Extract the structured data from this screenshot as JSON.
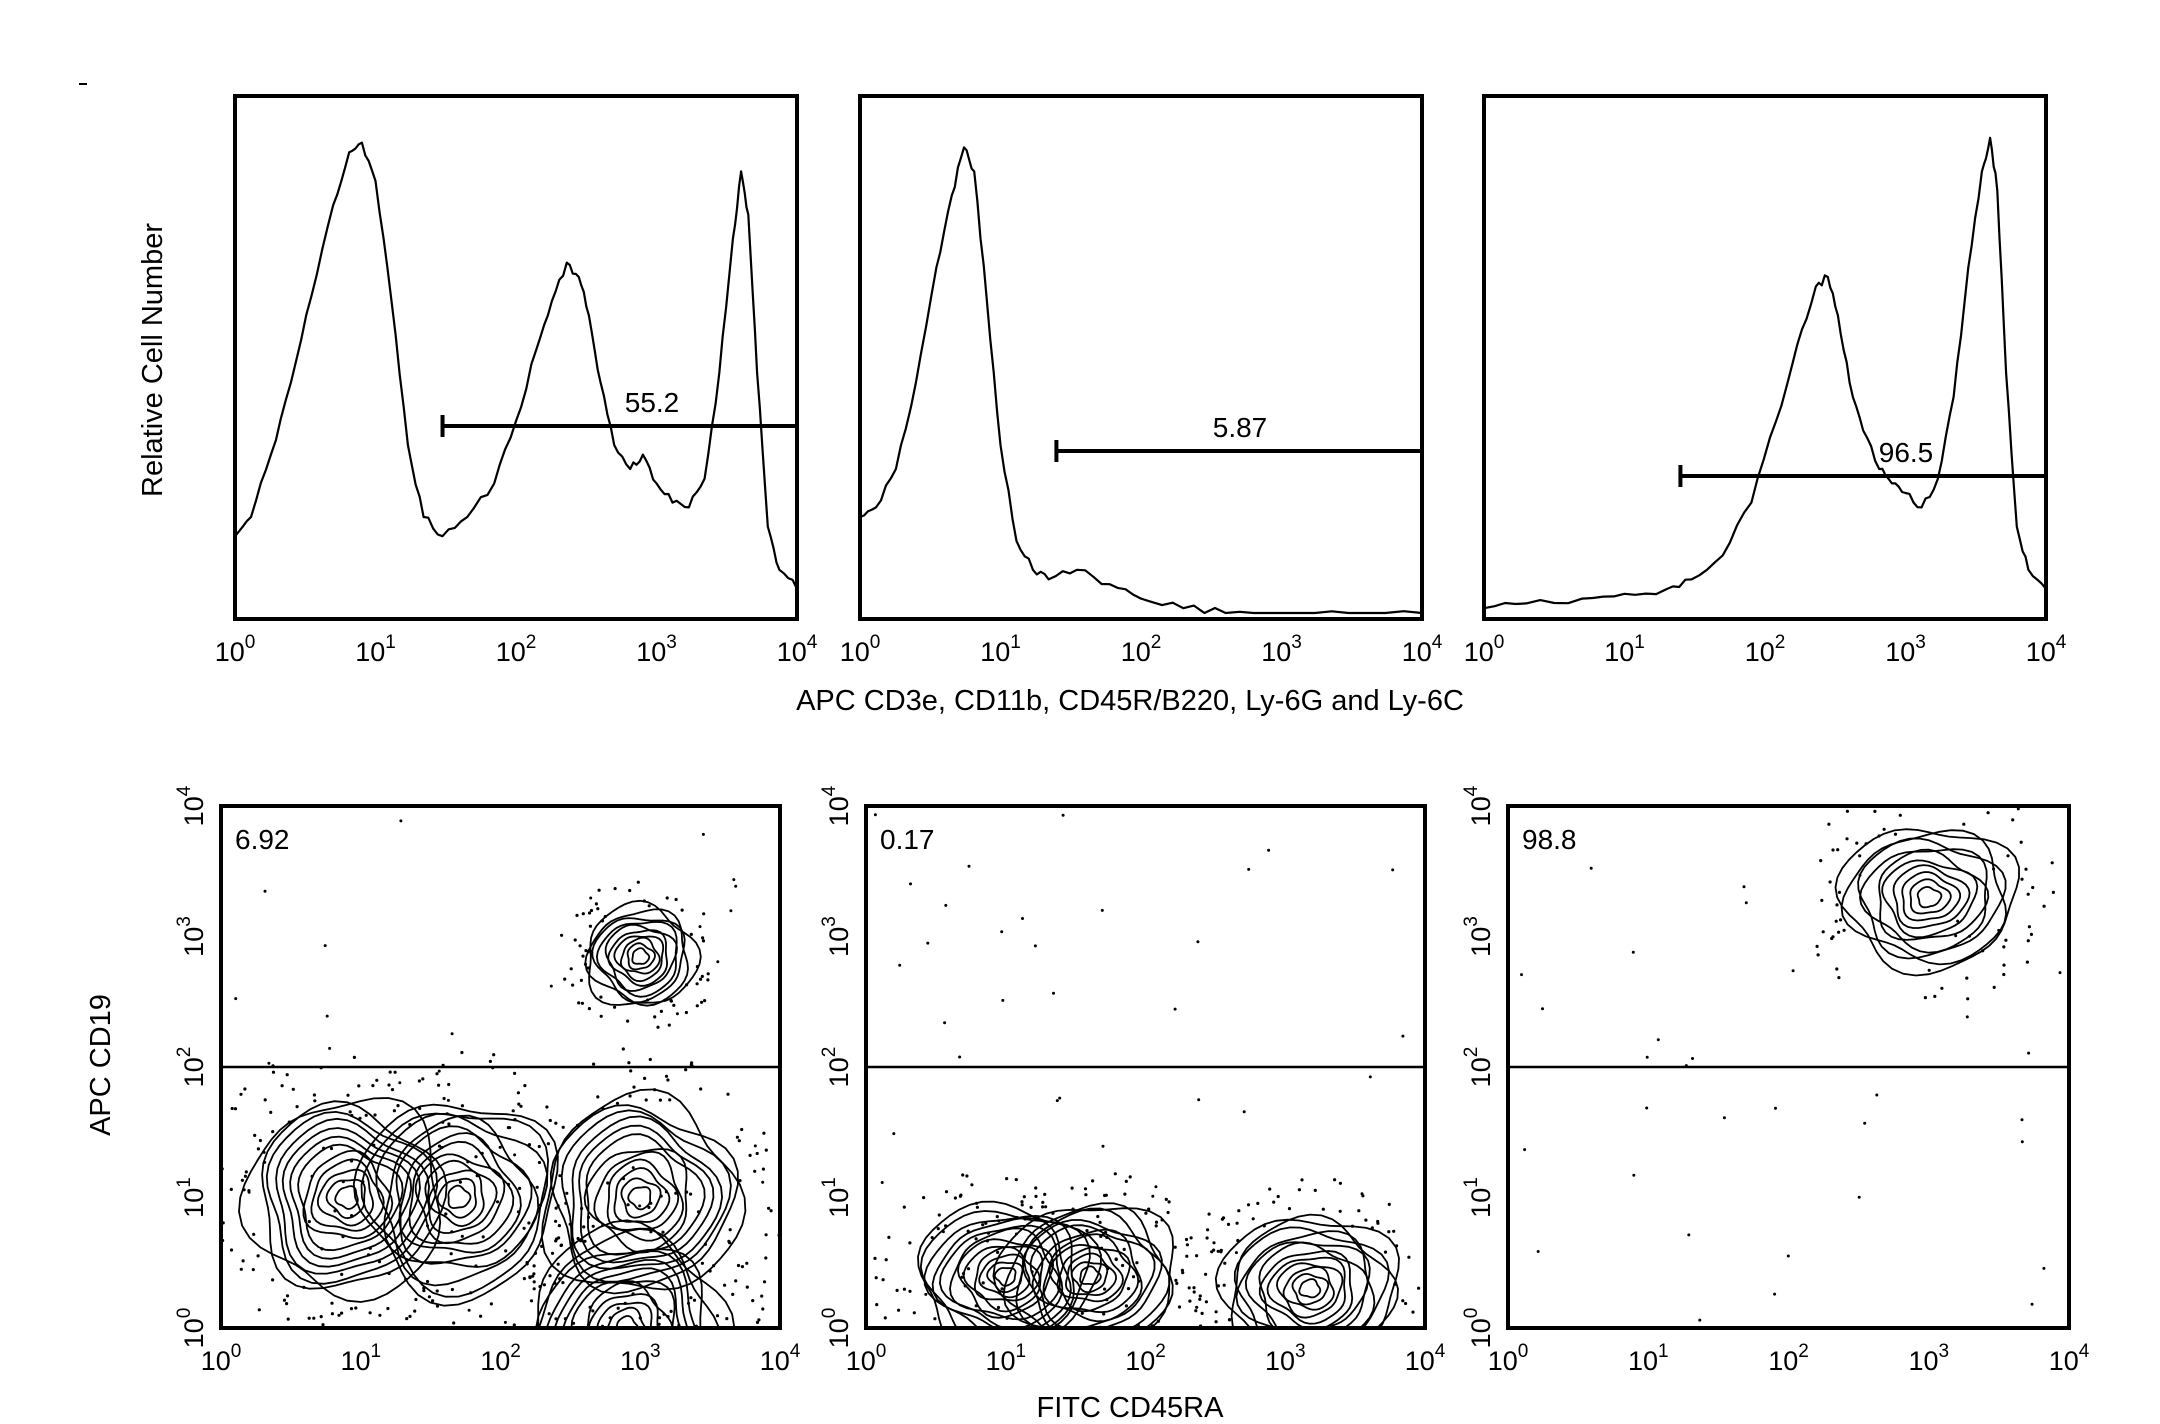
{
  "figure": {
    "histograms": {
      "ylabel": "Relative Cell Number",
      "xlabel": "APC CD3e, CD11b, CD45R/B220, Ly-6G and Ly-6C",
      "tick_labels": [
        "10^0",
        "10^1",
        "10^2",
        "10^3",
        "10^4"
      ]
    },
    "dotplots": {
      "ylabel": "APC CD19",
      "xlabel": "FITC CD45RA",
      "tick_labels": [
        "10^0",
        "10^1",
        "10^2",
        "10^3",
        "10^4"
      ]
    }
  },
  "chart_data": [
    {
      "type": "line",
      "panel": "histogram-1",
      "xscale": "log",
      "xlim": [
        1,
        10000
      ],
      "x": [
        1,
        1.3,
        1.8,
        2.5,
        3.5,
        5,
        6.5,
        8,
        10,
        13,
        17,
        22,
        30,
        45,
        70,
        100,
        140,
        180,
        230,
        280,
        330,
        400,
        500,
        650,
        800,
        1000,
        1300,
        1700,
        2200,
        2800,
        3500,
        4000,
        4500,
        5200,
        6200,
        7500,
        10000
      ],
      "values": [
        0.16,
        0.2,
        0.33,
        0.48,
        0.66,
        0.85,
        0.96,
        0.98,
        0.9,
        0.65,
        0.35,
        0.2,
        0.16,
        0.2,
        0.27,
        0.4,
        0.55,
        0.65,
        0.73,
        0.7,
        0.62,
        0.48,
        0.35,
        0.3,
        0.33,
        0.27,
        0.23,
        0.22,
        0.28,
        0.5,
        0.78,
        0.92,
        0.83,
        0.5,
        0.18,
        0.09,
        0.05
      ],
      "gate": {
        "x_range": [
          30,
          10000
        ],
        "label": "55.2"
      }
    },
    {
      "type": "line",
      "panel": "histogram-2",
      "xscale": "log",
      "xlim": [
        1,
        10000
      ],
      "x": [
        1,
        1.3,
        1.8,
        2.5,
        3.5,
        4.5,
        5.5,
        6.5,
        8,
        10,
        13,
        17,
        22,
        35,
        60,
        100,
        200,
        400,
        1000,
        3000,
        10000
      ],
      "values": [
        0.2,
        0.22,
        0.3,
        0.48,
        0.72,
        0.87,
        0.97,
        0.92,
        0.65,
        0.35,
        0.15,
        0.09,
        0.07,
        0.09,
        0.06,
        0.03,
        0.01,
        0.0,
        0.0,
        0.0,
        0.0
      ],
      "gate": {
        "x_range": [
          25,
          10000
        ],
        "label": "5.87"
      }
    },
    {
      "type": "line",
      "panel": "histogram-3",
      "xscale": "log",
      "xlim": [
        1,
        10000
      ],
      "x": [
        1,
        2,
        5,
        10,
        20,
        30,
        50,
        80,
        120,
        170,
        230,
        280,
        330,
        400,
        500,
        650,
        800,
        1000,
        1300,
        1700,
        2200,
        2800,
        3500,
        4000,
        4500,
        5200,
        6200,
        7500,
        10000
      ],
      "values": [
        0.01,
        0.02,
        0.03,
        0.04,
        0.05,
        0.07,
        0.12,
        0.23,
        0.4,
        0.56,
        0.68,
        0.7,
        0.62,
        0.48,
        0.38,
        0.3,
        0.27,
        0.25,
        0.22,
        0.28,
        0.45,
        0.72,
        0.92,
        0.99,
        0.88,
        0.5,
        0.18,
        0.09,
        0.05
      ],
      "gate": {
        "x_range": [
          25,
          10000
        ],
        "label": "96.5"
      }
    },
    {
      "type": "scatter",
      "panel": "dotplot-1",
      "xscale": "log",
      "yscale": "log",
      "xlim": [
        1,
        10000
      ],
      "ylim": [
        1,
        10000
      ],
      "gate": {
        "y_range": [
          100,
          10000
        ],
        "label": "6.92"
      },
      "populations": [
        {
          "x": 1000,
          "y": 700
        },
        {
          "x": 8,
          "y": 10
        },
        {
          "x": 50,
          "y": 10
        },
        {
          "x": 1000,
          "y": 10
        },
        {
          "x": 800,
          "y": 1
        }
      ]
    },
    {
      "type": "scatter",
      "panel": "dotplot-2",
      "xscale": "log",
      "yscale": "log",
      "xlim": [
        1,
        10000
      ],
      "ylim": [
        1,
        10000
      ],
      "gate": {
        "y_range": [
          100,
          10000
        ],
        "label": "0.17"
      },
      "populations": [
        {
          "x": 10,
          "y": 2.5
        },
        {
          "x": 40,
          "y": 2.5
        },
        {
          "x": 1500,
          "y": 2
        }
      ]
    },
    {
      "type": "scatter",
      "panel": "dotplot-3",
      "xscale": "log",
      "yscale": "log",
      "xlim": [
        1,
        10000
      ],
      "ylim": [
        1,
        10000
      ],
      "gate": {
        "y_range": [
          100,
          10000
        ],
        "label": "98.8"
      },
      "populations": [
        {
          "x": 1000,
          "y": 2000
        }
      ]
    }
  ]
}
